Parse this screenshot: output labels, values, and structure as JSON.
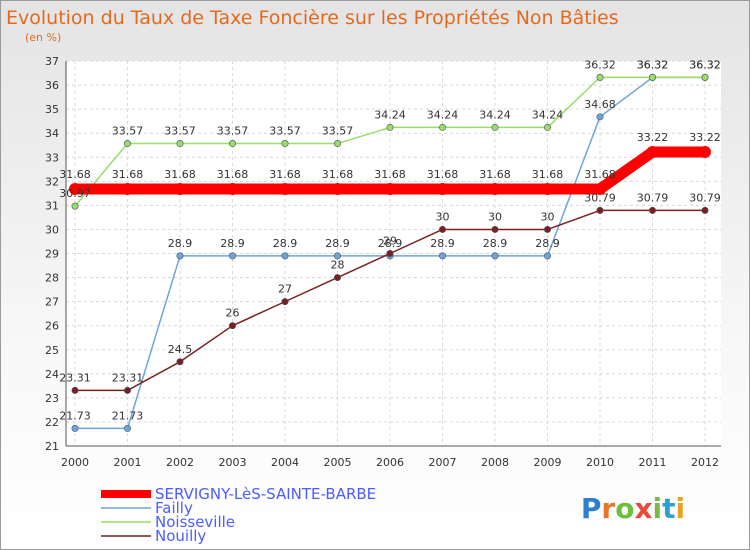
{
  "chart_data": {
    "type": "line",
    "title": "Evolution du Taux de Taxe Foncière sur les Propriétés Non Bâties",
    "ylabel": "(en %)",
    "xlabel": "",
    "categories": [
      "2000",
      "2001",
      "2002",
      "2003",
      "2004",
      "2005",
      "2006",
      "2007",
      "2008",
      "2009",
      "2010",
      "2011",
      "2012"
    ],
    "yticks": [
      21,
      22,
      23,
      24,
      25,
      26,
      27,
      28,
      29,
      30,
      31,
      32,
      33,
      34,
      35,
      36,
      37
    ],
    "ylim": [
      21,
      37
    ],
    "grid": true,
    "legend": "bottom-left",
    "series": [
      {
        "name": "SERVIGNY-LèS-SAINTE-BARBE",
        "color": "#ff0000",
        "values": [
          31.68,
          31.68,
          31.68,
          31.68,
          31.68,
          31.68,
          31.68,
          31.68,
          31.68,
          31.68,
          31.68,
          33.22,
          33.22
        ],
        "labels": [
          "31.68",
          "31.68",
          "31.68",
          "31.68",
          "31.68",
          "31.68",
          "31.68",
          "31.68",
          "31.68",
          "31.68",
          "31.68",
          "33.22",
          "33.22"
        ]
      },
      {
        "name": "Failly",
        "color": "#6fa4d6",
        "values": [
          21.73,
          21.73,
          28.9,
          28.9,
          28.9,
          28.9,
          28.9,
          28.9,
          28.9,
          28.9,
          34.68,
          36.32,
          36.32
        ],
        "labels": [
          "21.73",
          "21.73",
          "28.9",
          "28.9",
          "28.9",
          "28.9",
          "28.9",
          "28.9",
          "28.9",
          "28.9",
          "34.68",
          "36.32",
          "36.32"
        ]
      },
      {
        "name": "Noisseville",
        "color": "#99dd66",
        "values": [
          30.97,
          33.57,
          33.57,
          33.57,
          33.57,
          33.57,
          34.24,
          34.24,
          34.24,
          34.24,
          36.32,
          36.32,
          36.32
        ],
        "labels": [
          "30.97",
          "33.57",
          "33.57",
          "33.57",
          "33.57",
          "33.57",
          "34.24",
          "34.24",
          "34.24",
          "34.24",
          "36.32",
          "36.32",
          "36.32"
        ]
      },
      {
        "name": "Nouilly",
        "color": "#7a2020",
        "values": [
          23.31,
          23.31,
          24.5,
          26,
          27,
          28,
          29,
          30,
          30,
          30,
          30.79,
          30.79,
          30.79
        ],
        "labels": [
          "23.31",
          "23.31",
          "24.5",
          "26",
          "27",
          "28",
          "29",
          "30",
          "30",
          "30",
          "30.79",
          "30.79",
          "30.79"
        ]
      }
    ]
  },
  "logo": {
    "text": "Proxiti"
  }
}
